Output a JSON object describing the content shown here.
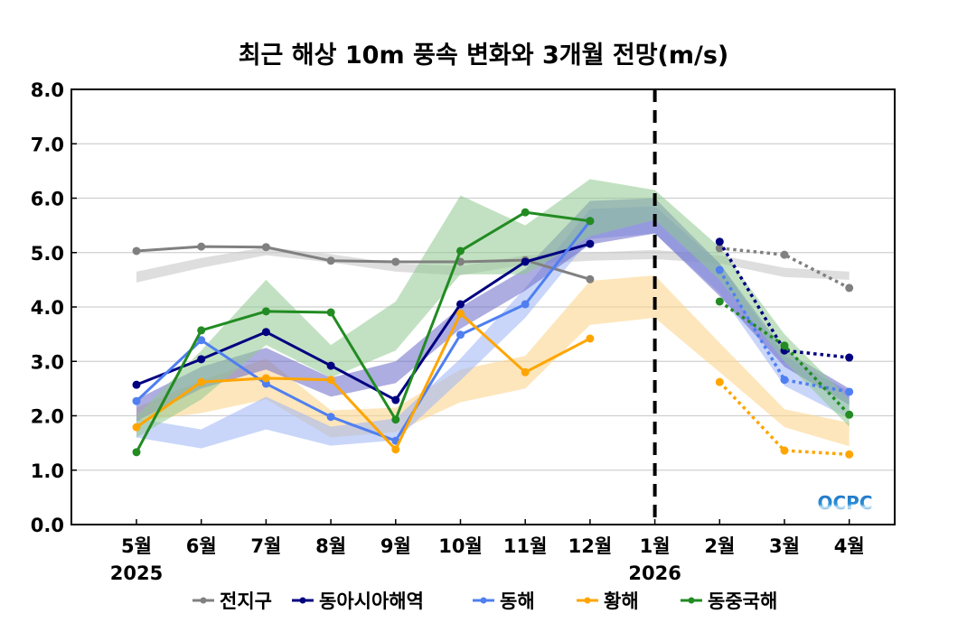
{
  "chart_data": {
    "type": "line",
    "title": "최근 해상 10m 풍속 변화와 3개월 전망(m/s)",
    "xlabel": "",
    "ylabel": "",
    "ylim": [
      0,
      8
    ],
    "yticks": [
      "0.0",
      "1.0",
      "2.0",
      "3.0",
      "4.0",
      "5.0",
      "6.0",
      "7.0",
      "8.0"
    ],
    "grid": true,
    "categories": [
      "5월",
      "6월",
      "7월",
      "8월",
      "9월",
      "10월",
      "11월",
      "12월",
      "1월",
      "2월",
      "3월",
      "4월"
    ],
    "year_labels": [
      {
        "category_index": 0,
        "label": "2025"
      },
      {
        "category_index": 8,
        "label": "2026"
      }
    ],
    "divider": {
      "category_index": 8,
      "style": "dashed",
      "color": "#000000"
    },
    "legend_position": "bottom",
    "logo_text": "OCPC",
    "series": [
      {
        "name": "전지구",
        "color": "#808080",
        "band_color": "#c8c8c8",
        "observed": [
          5.03,
          5.11,
          5.1,
          4.85,
          4.83,
          4.83,
          4.86,
          4.51,
          null,
          null,
          null,
          null
        ],
        "forecast": [
          null,
          null,
          null,
          null,
          null,
          null,
          null,
          null,
          null,
          5.08,
          4.96,
          4.35
        ],
        "band_lower": [
          4.45,
          4.72,
          4.95,
          4.82,
          4.65,
          4.58,
          4.78,
          4.85,
          4.88,
          4.8,
          4.55,
          4.5
        ],
        "band_upper": [
          4.65,
          4.9,
          5.1,
          4.97,
          4.8,
          4.75,
          4.95,
          5.0,
          5.05,
          4.95,
          4.72,
          4.65
        ]
      },
      {
        "name": "동아시아해역",
        "color": "#000080",
        "band_color": "#6a6ac8",
        "observed": [
          2.57,
          3.04,
          3.54,
          2.92,
          2.29,
          4.05,
          4.83,
          5.16,
          null,
          null,
          null,
          null
        ],
        "forecast": [
          null,
          null,
          null,
          null,
          null,
          null,
          null,
          null,
          null,
          5.2,
          3.2,
          3.07
        ],
        "band_lower": [
          1.9,
          2.5,
          2.85,
          2.35,
          2.6,
          3.6,
          4.3,
          5.15,
          5.35,
          4.2,
          2.9,
          2.2
        ],
        "band_upper": [
          2.3,
          2.9,
          3.25,
          2.7,
          3.0,
          4.0,
          4.7,
          5.95,
          6.0,
          4.8,
          3.2,
          2.5
        ]
      },
      {
        "name": "동해",
        "color": "#4f7ff0",
        "band_color": "#9db5f5",
        "observed": [
          2.27,
          3.39,
          2.59,
          1.98,
          1.54,
          3.49,
          4.05,
          5.58,
          null,
          null,
          null,
          null
        ],
        "forecast": [
          null,
          null,
          null,
          null,
          null,
          null,
          null,
          null,
          null,
          4.68,
          2.66,
          2.44
        ],
        "band_lower": [
          1.6,
          1.4,
          1.75,
          1.45,
          1.55,
          2.65,
          3.8,
          5.25,
          5.35,
          4.25,
          2.55,
          1.95
        ],
        "band_upper": [
          1.95,
          1.75,
          2.35,
          1.8,
          1.95,
          3.05,
          4.35,
          5.8,
          5.85,
          4.8,
          3.1,
          2.45
        ]
      },
      {
        "name": "황해",
        "color": "#ffa500",
        "band_color": "#fcd58f",
        "observed": [
          1.79,
          2.62,
          2.69,
          2.66,
          1.38,
          3.88,
          2.8,
          3.42,
          null,
          null,
          null,
          null
        ],
        "forecast": [
          null,
          null,
          null,
          null,
          null,
          null,
          null,
          null,
          null,
          2.62,
          1.36,
          1.29
        ],
        "band_lower": [
          1.9,
          2.05,
          2.3,
          1.6,
          1.7,
          2.25,
          2.5,
          3.67,
          3.8,
          2.8,
          1.79,
          1.44
        ],
        "band_upper": [
          2.15,
          2.65,
          3.05,
          2.1,
          2.15,
          2.85,
          3.1,
          4.48,
          4.58,
          3.34,
          2.12,
          1.87
        ]
      },
      {
        "name": "동중국해",
        "color": "#228b22",
        "band_color": "#8fc98f",
        "observed": [
          1.33,
          3.57,
          3.92,
          3.9,
          1.93,
          5.03,
          5.74,
          5.58,
          null,
          null,
          null,
          null
        ],
        "forecast": [
          null,
          null,
          null,
          null,
          null,
          null,
          null,
          null,
          null,
          4.1,
          3.29,
          2.02
        ],
        "band_lower": [
          1.6,
          2.3,
          3.3,
          2.7,
          3.2,
          4.6,
          4.6,
          5.3,
          5.6,
          4.5,
          3.0,
          1.8
        ],
        "band_upper": [
          2.0,
          3.2,
          4.5,
          3.3,
          4.1,
          6.05,
          5.5,
          6.35,
          6.15,
          5.1,
          3.5,
          2.3
        ]
      }
    ]
  }
}
